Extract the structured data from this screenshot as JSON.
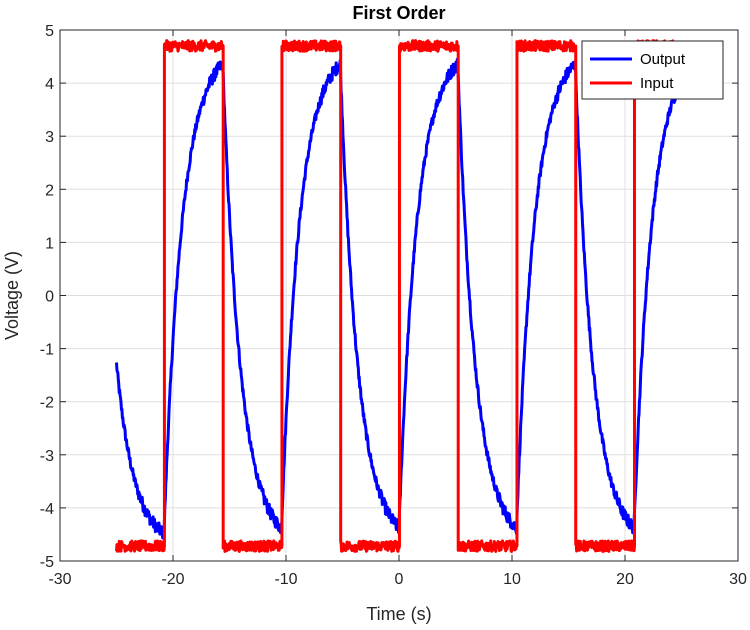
{
  "chart_data": {
    "type": "line",
    "title": "First Order",
    "xlabel": "Time (s)",
    "ylabel": "Voltage (V)",
    "xlim": [
      -30,
      30
    ],
    "ylim": [
      -5,
      5
    ],
    "xticks": [
      -30,
      -20,
      -10,
      0,
      10,
      20,
      30
    ],
    "xtick_labels": [
      "-30",
      "-20",
      "-10",
      "0",
      "10",
      "20",
      "30"
    ],
    "yticks": [
      -5,
      -4,
      -3,
      -2,
      -1,
      0,
      1,
      2,
      3,
      4,
      5
    ],
    "ytick_labels": [
      "-5",
      "-4",
      "-3",
      "-2",
      "-1",
      "0",
      "1",
      "2",
      "3",
      "4",
      "5"
    ],
    "grid": true,
    "legend": {
      "position": "top-right",
      "entries": [
        "Output",
        "Input"
      ]
    },
    "series": [
      {
        "name": "Output",
        "color": "#0000ff",
        "model": "first-order response to square wave",
        "t_start": -25,
        "t_end": 25,
        "v_initial": -1.2,
        "time_constant": 1.6,
        "noise_amplitude": 0.12
      },
      {
        "name": "Input",
        "color": "#ff0000",
        "model": "square wave",
        "high": 4.7,
        "low": -4.72,
        "t_start": -25,
        "t_end": 25,
        "transitions": [
          {
            "t": -20.8,
            "level": "high"
          },
          {
            "t": -15.6,
            "level": "low"
          },
          {
            "t": -10.4,
            "level": "high"
          },
          {
            "t": -5.2,
            "level": "low"
          },
          {
            "t": 0.0,
            "level": "high"
          },
          {
            "t": 5.2,
            "level": "low"
          },
          {
            "t": 10.4,
            "level": "high"
          },
          {
            "t": 15.6,
            "level": "low"
          },
          {
            "t": 20.8,
            "level": "high"
          }
        ],
        "noise_amplitude": 0.1
      }
    ]
  }
}
